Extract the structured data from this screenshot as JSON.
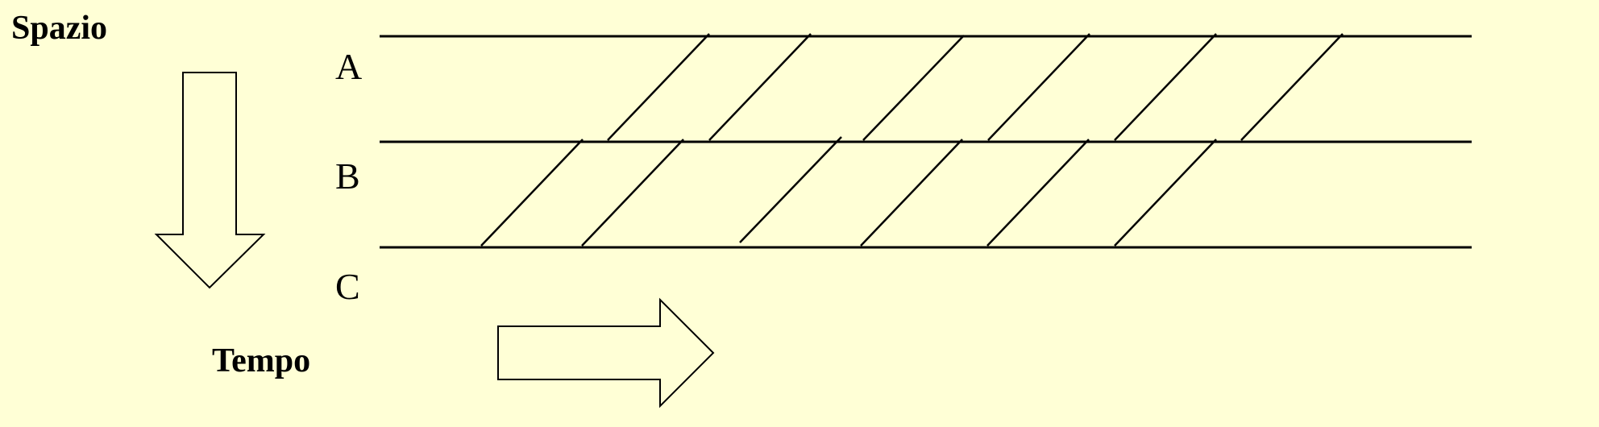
{
  "axes": {
    "space_label": "Spazio",
    "time_label": "Tempo"
  },
  "rows": [
    {
      "label": "A"
    },
    {
      "label": "B"
    },
    {
      "label": "C"
    }
  ],
  "colors": {
    "background": "#ffffd6",
    "ink": "#000000"
  }
}
